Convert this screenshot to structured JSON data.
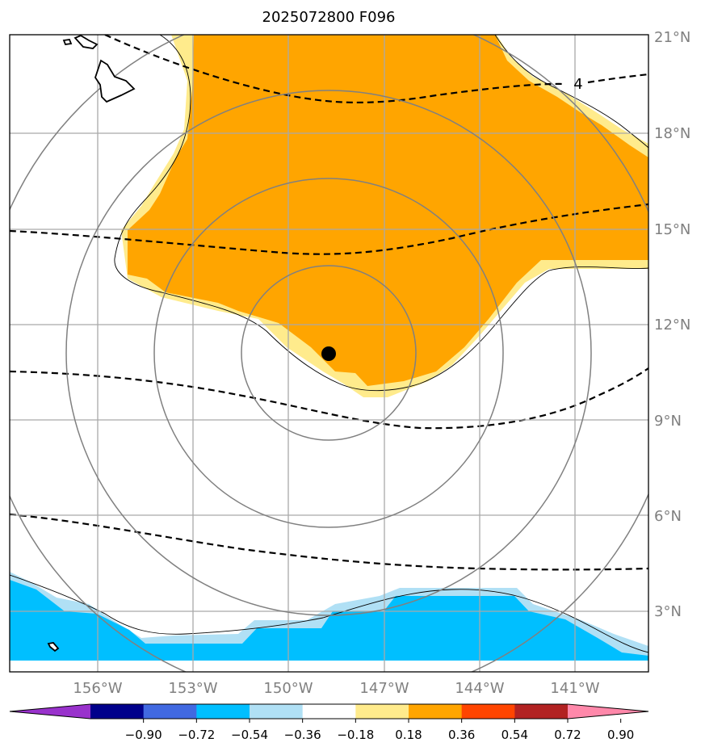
{
  "title": "2025072800 F096",
  "map": {
    "lat_labels": [
      "21°N",
      "18°N",
      "15°N",
      "12°N",
      "9°N",
      "6°N",
      "3°N"
    ],
    "lon_labels": [
      "156°W",
      "153°W",
      "150°W",
      "147°W",
      "144°W",
      "141°W"
    ],
    "contour_label": "4",
    "storm_center_marker": "black-dot"
  },
  "colorbar": {
    "ticks": [
      "−0.90",
      "−0.72",
      "−0.54",
      "−0.36",
      "−0.18",
      "0.18",
      "0.36",
      "0.54",
      "0.72",
      "0.90"
    ],
    "colors": [
      "#9932CC",
      "#00008B",
      "#4169E1",
      "#00BFFF",
      "#B0E0F5",
      "#FFFFFF",
      "#FFEB8C",
      "#FFA500",
      "#FF4500",
      "#B22222",
      "#FF88AA"
    ]
  },
  "colors": {
    "positive_shading": "#FFA500",
    "positive_edge": "#FFEB8C",
    "negative_shading": "#00BFFF",
    "negative_edge": "#B0E0F5",
    "grid": "#A9A9A9",
    "range_rings": "#808080"
  }
}
